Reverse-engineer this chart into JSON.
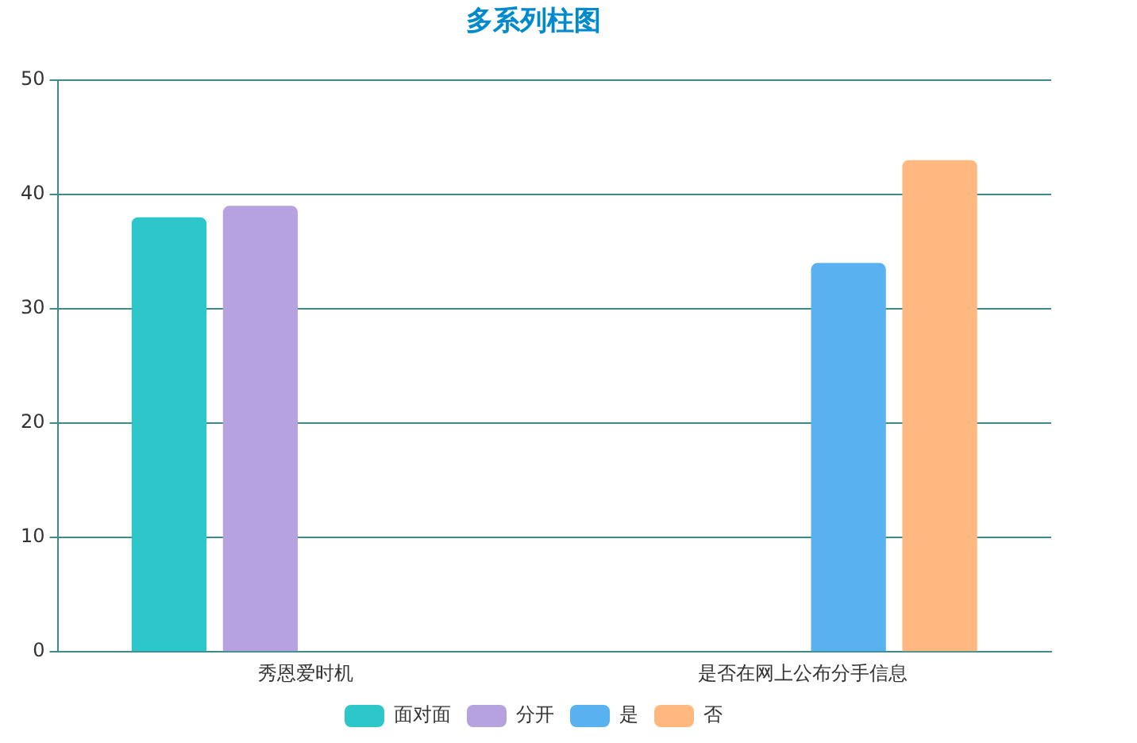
{
  "chart_data": {
    "type": "bar",
    "title": "多系列柱图",
    "categories": [
      "秀恩爱时机",
      "是否在网上公布分手信息"
    ],
    "series": [
      {
        "name": "面对面",
        "color": "#2ec7c9",
        "values": [
          38,
          null
        ]
      },
      {
        "name": "分开",
        "color": "#b6a2de",
        "values": [
          39,
          null
        ]
      },
      {
        "name": "是",
        "color": "#5ab1ef",
        "values": [
          null,
          34
        ]
      },
      {
        "name": "否",
        "color": "#ffb980",
        "values": [
          null,
          43
        ]
      }
    ],
    "ylim": [
      0,
      50
    ],
    "yticks": [
      0,
      10,
      20,
      30,
      40,
      50
    ],
    "grid": "y",
    "legend": "bottom"
  }
}
